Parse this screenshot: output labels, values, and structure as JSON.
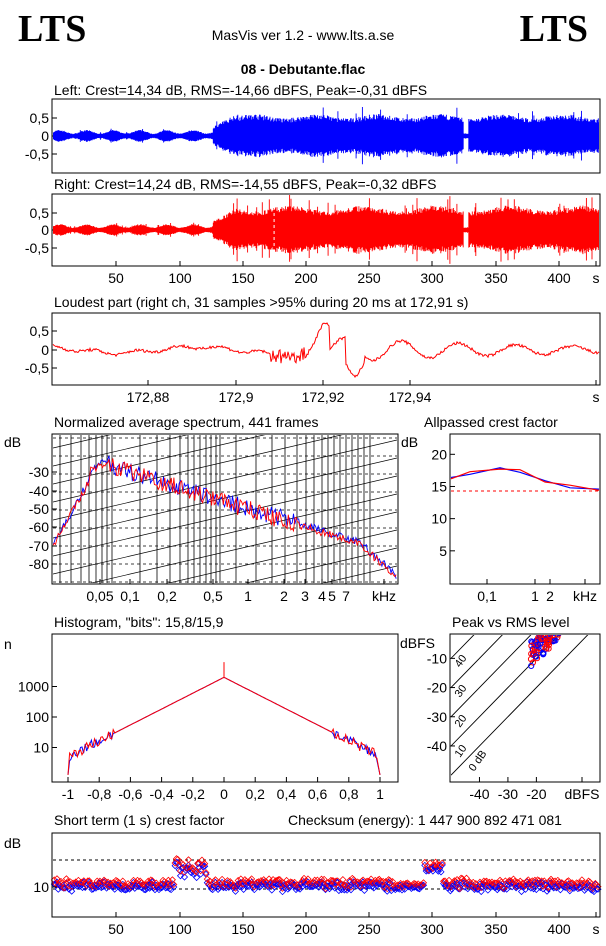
{
  "header": {
    "logo_left": "LTS",
    "logo_right": "LTS",
    "app_title": "MasVis ver 1.2 - www.lts.a.se",
    "file_name": "08 - Debutante.flac"
  },
  "chart_data": [
    {
      "id": "left",
      "type": "area",
      "title": "Left: Crest=14,34 dB, RMS=-14,66 dBFS, Peak=-0,31 dBFS",
      "ylim": [
        -1,
        1
      ],
      "yticks": [
        "0,5",
        "0",
        "-0,5"
      ],
      "color": "#0000ff"
    },
    {
      "id": "right",
      "type": "area",
      "title": "Right: Crest=14,24 dB, RMS=-14,55 dBFS, Peak=-0,32 dBFS",
      "ylim": [
        -1,
        1
      ],
      "yticks": [
        "0,5",
        "0",
        "-0,5"
      ],
      "xticks": [
        "50",
        "100",
        "150",
        "200",
        "250",
        "300",
        "350",
        "400",
        "s"
      ],
      "xlim": [
        0,
        427
      ],
      "color": "#ff0000"
    },
    {
      "id": "loudest",
      "type": "line",
      "title": "Loudest part (right ch, 31 samples >95% during 20 ms at 172,91 s)",
      "yticks": [
        "0,5",
        "0",
        "-0,5"
      ],
      "xticks": [
        "172,88",
        "172,9",
        "172,92",
        "172,94",
        "s"
      ],
      "color": "#ff0000"
    },
    {
      "id": "spectrum",
      "type": "line",
      "title": "Normalized average spectrum, 441 frames",
      "ylabel": "dB",
      "yticks": [
        "-30",
        "-40",
        "-50",
        "-60",
        "-70",
        "-80"
      ],
      "xticks": [
        "0,05",
        "0,1",
        "0,2",
        "0,5",
        "1",
        "2",
        "3",
        "4",
        "5",
        "7",
        "kHz"
      ]
    },
    {
      "id": "crest",
      "type": "line",
      "title": "Allpassed crest factor",
      "ylabel": "dB",
      "yticks": [
        "20",
        "15",
        "10",
        "5"
      ],
      "xticks": [
        "0,1",
        "1",
        "2",
        "kHz"
      ],
      "reference_db": 14.3
    },
    {
      "id": "histogram",
      "type": "line",
      "title": "Histogram, \"bits\": 15,8/15,9",
      "ylabel": "n",
      "yticks": [
        "1000",
        "100",
        "10"
      ],
      "xticks": [
        "-1",
        "-0,8",
        "-0,6",
        "-0,4",
        "-0,2",
        "0",
        "0,2",
        "0,4",
        "0,6",
        "0,8",
        "1"
      ]
    },
    {
      "id": "peakrms",
      "type": "scatter",
      "title": "Peak vs RMS level",
      "ylabel": "dBFS",
      "yticks": [
        "-10",
        "-20",
        "-30",
        "-40"
      ],
      "xticks": [
        "-40",
        "-30",
        "-20",
        "dBFS"
      ],
      "diag_labels": [
        "40",
        "30",
        "20",
        "10",
        "0 dB"
      ]
    },
    {
      "id": "shortcrest",
      "type": "scatter",
      "title": "Short term (1 s) crest factor",
      "checksum": "Checksum (energy):  1 447 900 892 471 081",
      "ylabel": "dB",
      "yticks": [
        "10"
      ],
      "xticks": [
        "50",
        "100",
        "150",
        "200",
        "250",
        "300",
        "350",
        "400",
        "s"
      ]
    }
  ]
}
